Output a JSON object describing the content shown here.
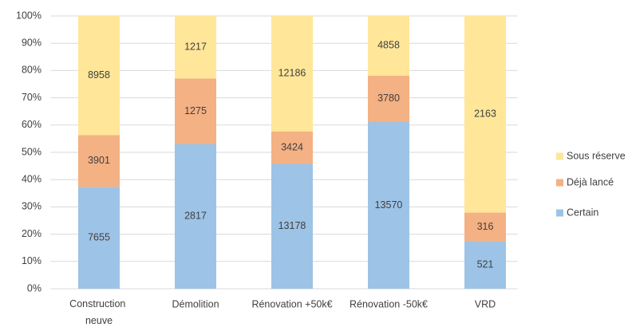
{
  "chart_data": {
    "type": "bar",
    "stacking": "percent",
    "categories": [
      "Construction neuve",
      "Démolition",
      "Rénovation +50k€",
      "Rénovation -50k€",
      "VRD"
    ],
    "series": [
      {
        "name": "Certain",
        "color": "#9dc3e6",
        "values": [
          7655,
          2817,
          13178,
          13570,
          521
        ]
      },
      {
        "name": "Déjà lancé",
        "color": "#f4b183",
        "values": [
          3901,
          1275,
          3424,
          3780,
          316
        ]
      },
      {
        "name": "Sous réserve",
        "color": "#ffe699",
        "values": [
          8958,
          1217,
          12186,
          4858,
          2163
        ]
      }
    ],
    "ylim": [
      0,
      100
    ],
    "yticks": [
      {
        "value": 0,
        "label": "0%"
      },
      {
        "value": 10,
        "label": "10%"
      },
      {
        "value": 20,
        "label": "20%"
      },
      {
        "value": 30,
        "label": "30%"
      },
      {
        "value": 40,
        "label": "40%"
      },
      {
        "value": 50,
        "label": "50%"
      },
      {
        "value": 60,
        "label": "60%"
      },
      {
        "value": 70,
        "label": "70%"
      },
      {
        "value": 80,
        "label": "80%"
      },
      {
        "value": 90,
        "label": "90%"
      },
      {
        "value": 100,
        "label": "100%"
      }
    ],
    "grid": true,
    "legend": "right"
  }
}
